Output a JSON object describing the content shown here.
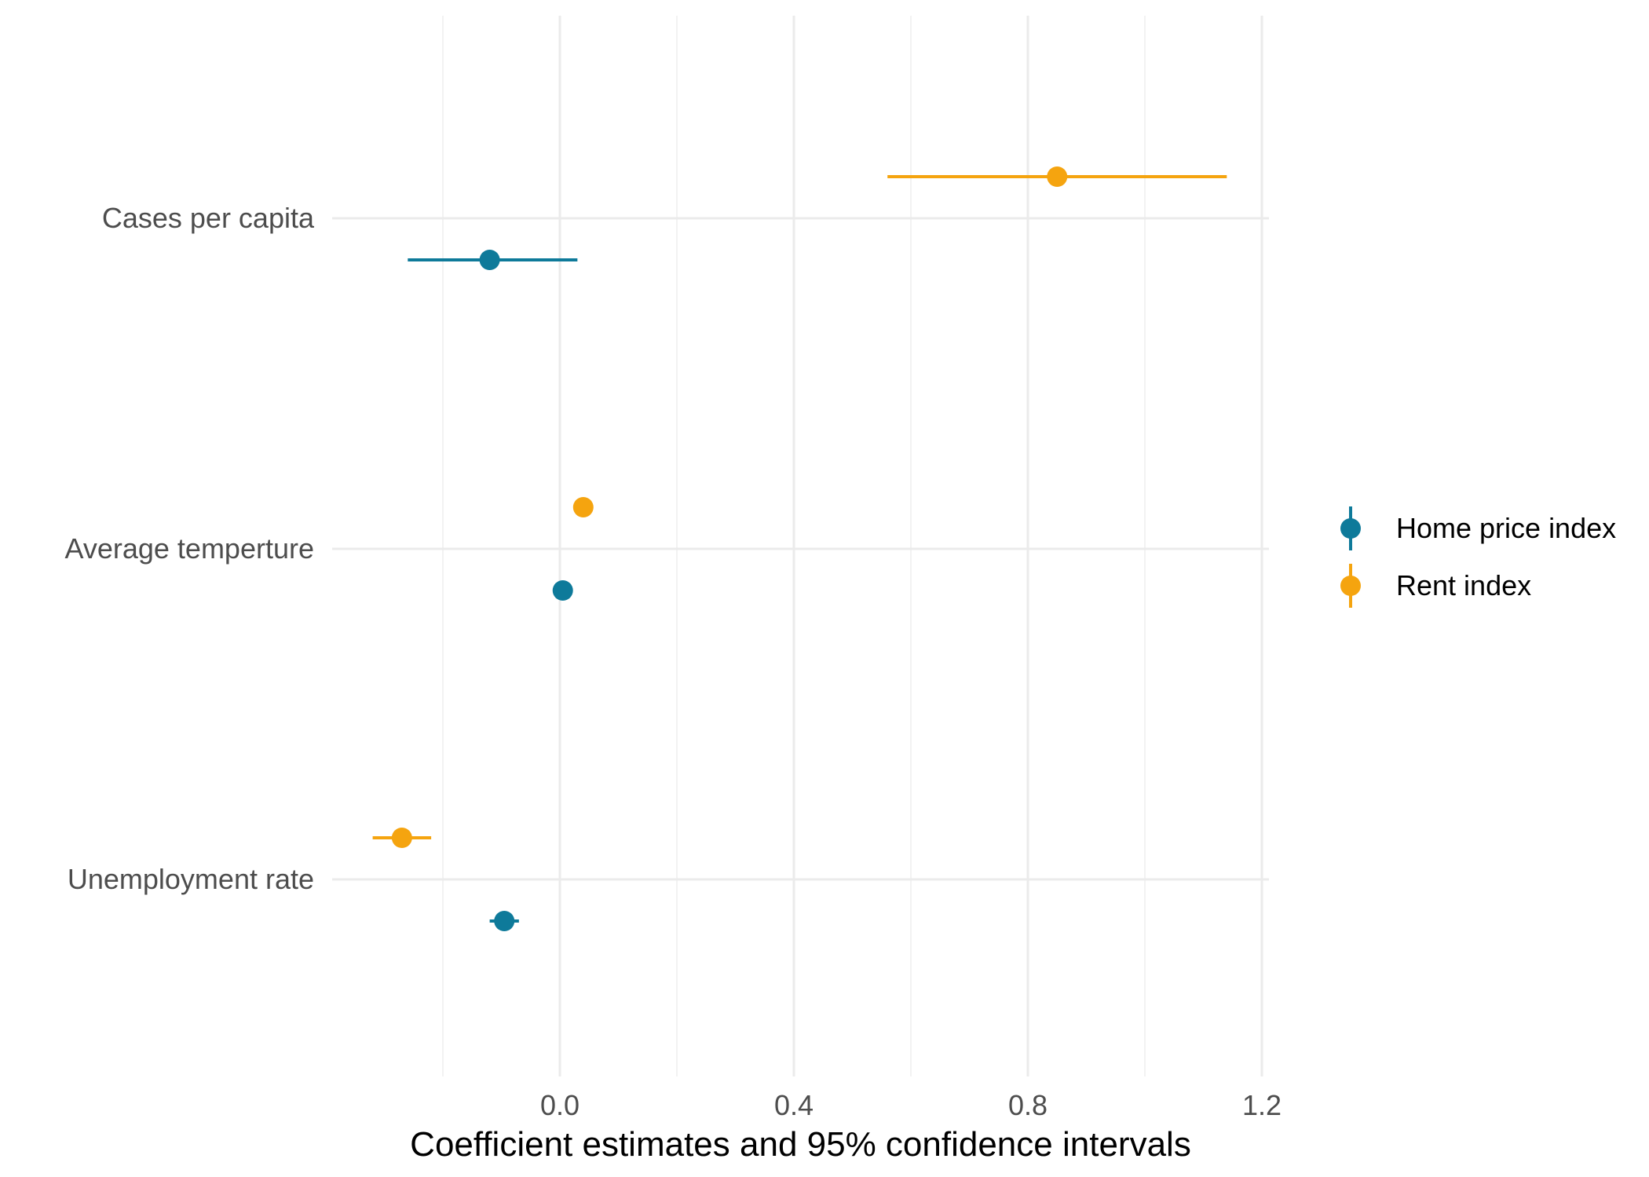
{
  "chart_data": {
    "type": "scatter",
    "subtype": "coefficient-plot",
    "title": "",
    "xlabel": "Coefficient estimates and 95% confidence intervals",
    "ylabel": "",
    "xlim": [
      -0.35,
      1.22
    ],
    "x_ticks": [
      0.0,
      0.4,
      0.8,
      1.2
    ],
    "x_tick_labels": [
      "0.0",
      "0.4",
      "0.8",
      "1.2"
    ],
    "categories": [
      "Cases per capita",
      "Average temperture",
      "Unemployment rate"
    ],
    "grid": true,
    "legend_position": "right",
    "series": [
      {
        "name": "Home price index",
        "color": "#0e7a9a",
        "points": [
          {
            "category": "Cases per capita",
            "estimate": -0.12,
            "ci_low": -0.26,
            "ci_high": 0.03
          },
          {
            "category": "Average temperture",
            "estimate": 0.005,
            "ci_low": 0.0,
            "ci_high": 0.01
          },
          {
            "category": "Unemployment rate",
            "estimate": -0.095,
            "ci_low": -0.12,
            "ci_high": -0.07
          }
        ]
      },
      {
        "name": "Rent index",
        "color": "#f5a40f",
        "points": [
          {
            "category": "Cases per capita",
            "estimate": 0.85,
            "ci_low": 0.56,
            "ci_high": 1.14
          },
          {
            "category": "Average temperture",
            "estimate": 0.04,
            "ci_low": 0.035,
            "ci_high": 0.045
          },
          {
            "category": "Unemployment rate",
            "estimate": -0.27,
            "ci_low": -0.32,
            "ci_high": -0.22
          }
        ]
      }
    ]
  }
}
